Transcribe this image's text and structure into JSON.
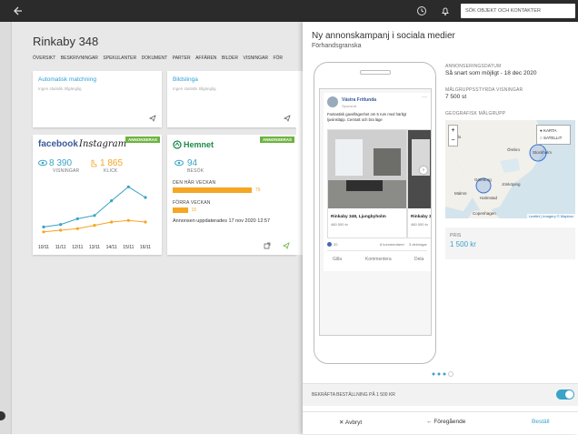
{
  "topbar": {
    "search_placeholder": "SÖK OBJEKT OCH KONTAKTER"
  },
  "property": {
    "title": "Rinkaby 348",
    "tabs": [
      "ÖVERSIKT",
      "BESKRIVNINGAR",
      "SPEKULANTER",
      "DOKUMENT",
      "PARTER",
      "AFFÄREN",
      "BILDER",
      "VISNINGAR",
      "FÖR"
    ]
  },
  "cards": {
    "matching": {
      "title": "Automatisk matchning",
      "note": "Ingen statistik tillgänglig"
    },
    "slideshow": {
      "title": "Bildslinga",
      "note": "Ingen statistik tillgänglig"
    },
    "social": {
      "brands": [
        "facebook",
        "Instagram"
      ],
      "badge": "ANNONSERAS",
      "views": "8 390",
      "views_label": "VISNINGAR",
      "clicks": "1 865",
      "clicks_label": "KLICK",
      "chart": {
        "categories": [
          "10/11",
          "11/11",
          "12/11",
          "13/11",
          "14/11",
          "15/11",
          "16/11"
        ],
        "views": [
          14,
          17,
          24,
          28,
          46,
          63,
          50
        ],
        "clicks": [
          8,
          10,
          12,
          16,
          20,
          22,
          20
        ]
      }
    },
    "hemnet": {
      "brand": "Hemnet",
      "badge": "ANNONSERAS",
      "visits": 94,
      "visits_label": "BESÖK",
      "this_week_label": "DEN HÄR VECKAN",
      "this_week": 79,
      "last_week_label": "FÖRRA VECKAN",
      "last_week": 15,
      "updated": "Annonsen uppdaterades 17 nov 2020 12:57"
    }
  },
  "panel": {
    "title": "Ny annonskampanj i sociala medier",
    "subtitle": "Förhandsgranska",
    "post": {
      "page": "Västra Fritlunda",
      "sponsored": "Sponsrat",
      "text": "Fantastisk gavellägenhet om 5 rum med härligt ljusinsläpp. Centralt och bra läge",
      "items": [
        {
          "title": "Rinkaby 348, Ljungbyholm",
          "price": "480 000 kr"
        },
        {
          "title": "Rinkaby 3",
          "price": "480 000 kr"
        }
      ],
      "reactions": "20",
      "comments": "8 kommentarer",
      "shares": "3 delningar",
      "actions": [
        "Gilla",
        "Kommentera",
        "Dela"
      ]
    },
    "date_label": "ANNONSERINGSDATUM",
    "date": "Så snart som möjligt - 18 dec 2020",
    "views_label": "MÅLGRUPPSSTYRDA VISNINGAR",
    "views": "7 500 st",
    "geo_label": "GEOGRAFISK MÅLGRUPP",
    "map": {
      "options": [
        "KARTA",
        "SATELLIT"
      ],
      "zoom": [
        "+",
        "−"
      ],
      "places": [
        "Oslo",
        "Örebro",
        "Stockholm",
        "Göteborg",
        "Jönköping",
        "Halmstad",
        "Malmö",
        "Copenhagen"
      ],
      "attribution": "Leaflet | Imagery © Mapbox"
    },
    "price_label": "PRIS",
    "price": "1 500 kr",
    "confirm": "BEKRÄFTA BESTÄLLNING PÅ 1 500 KR",
    "cancel": "Avbryt",
    "previous": "Föregående",
    "order": "Beställ"
  }
}
